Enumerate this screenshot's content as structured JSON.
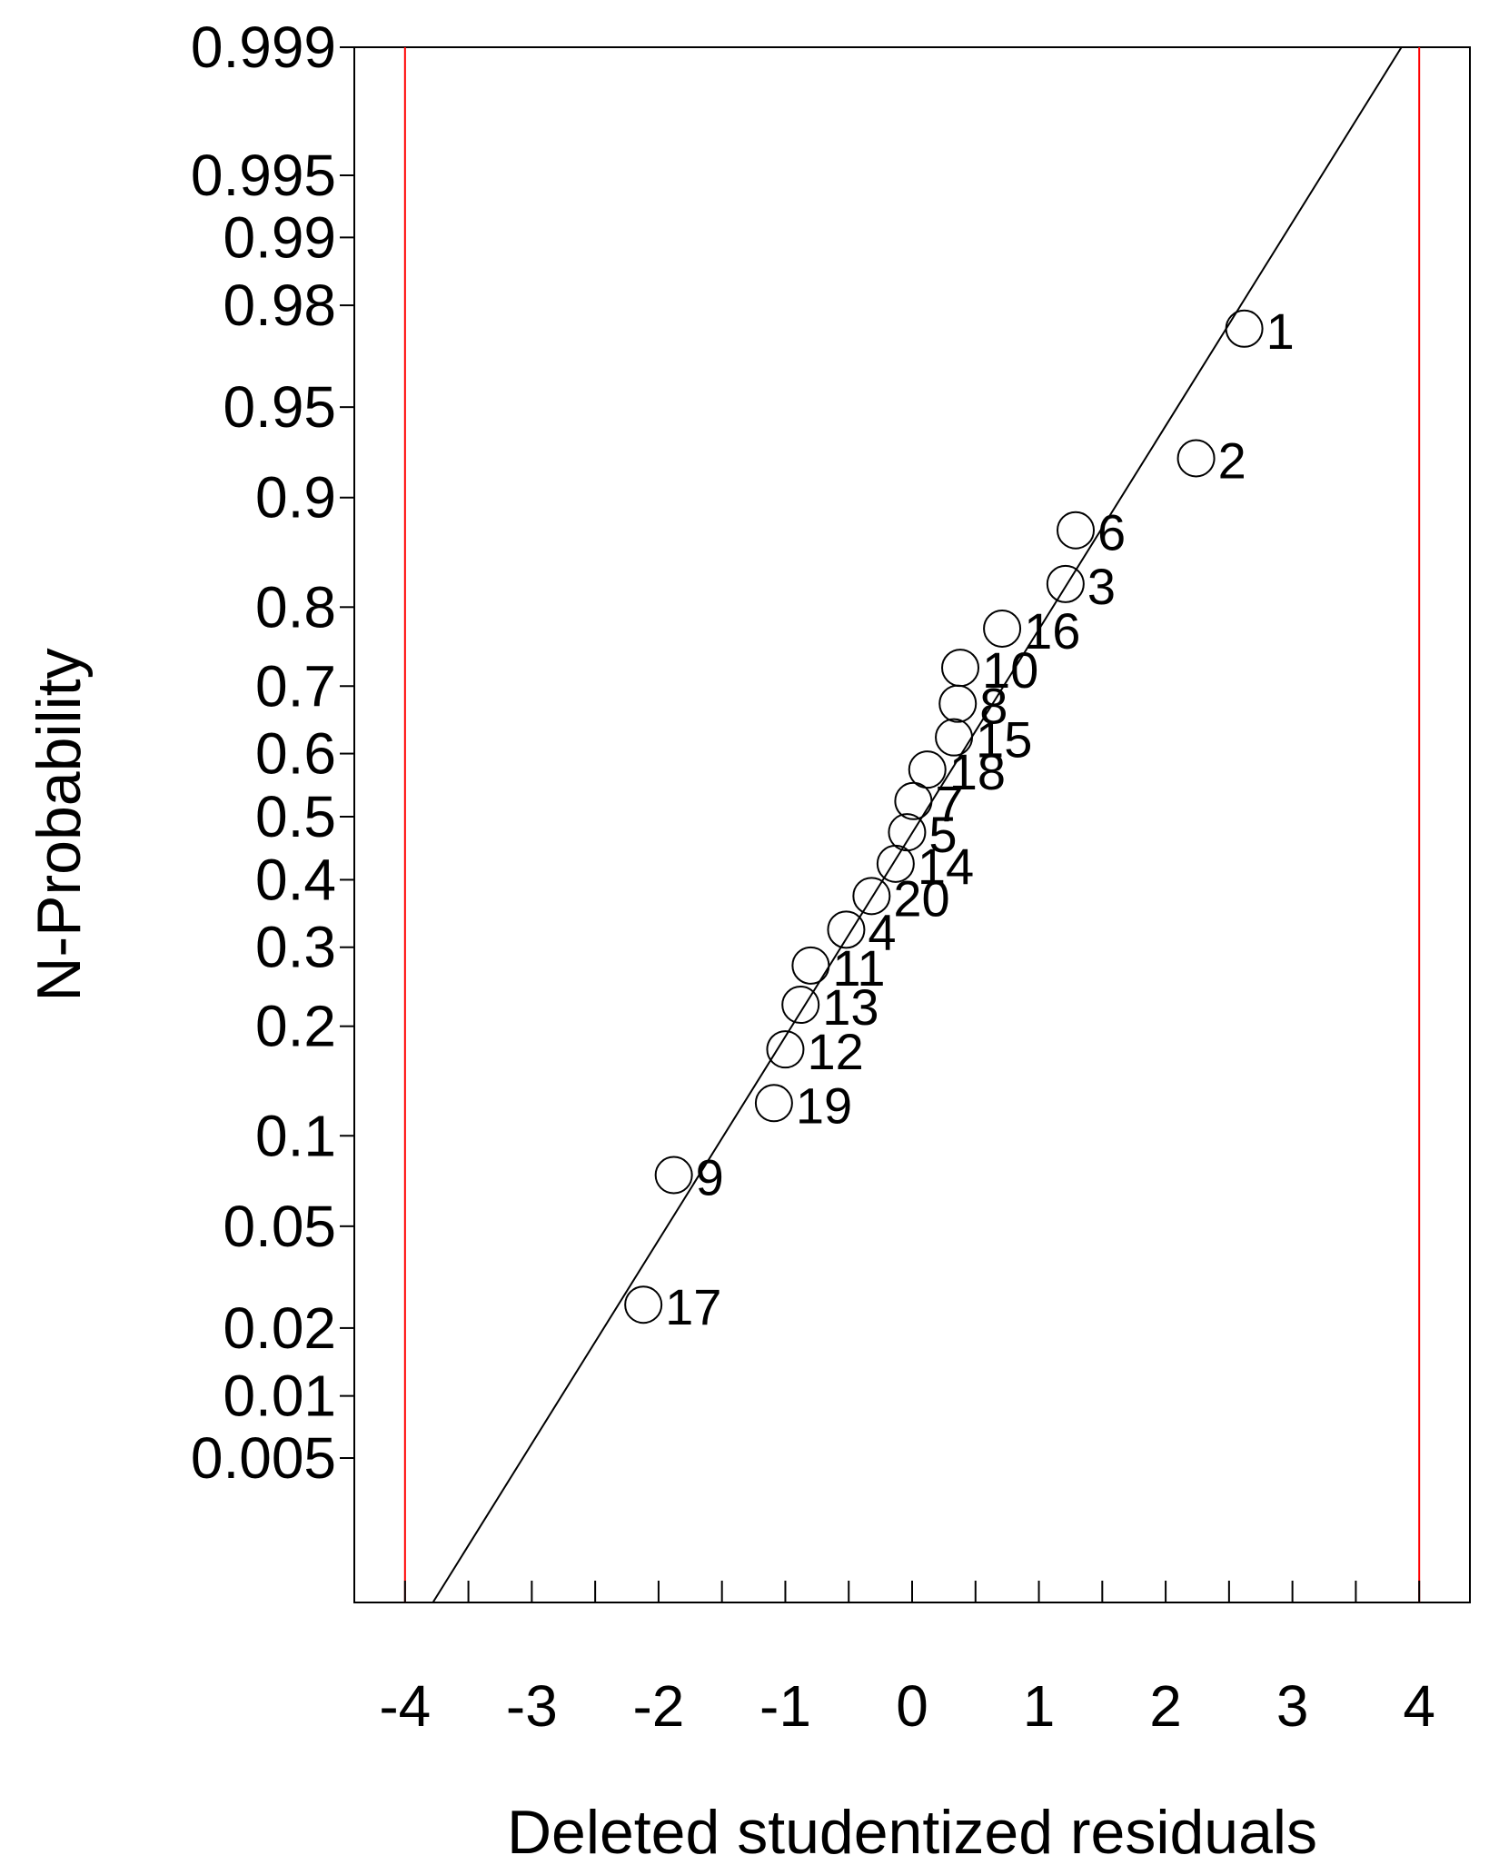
{
  "chart_data": {
    "type": "scatter",
    "title": "",
    "xlabel": "Deleted studentized residuals",
    "ylabel": "N-Probability",
    "xlim": [
      -4.4,
      4.4
    ],
    "ylim": [
      0.0008,
      0.999
    ],
    "yscale": "normal-probability",
    "grid": false,
    "x_ticks": [
      -4,
      -3,
      -2,
      -1,
      0,
      1,
      2,
      3,
      4
    ],
    "x_tick_labels": [
      "-4",
      "-3",
      "-2",
      "-1",
      "0",
      "1",
      "2",
      "3",
      "4"
    ],
    "x_minor_ticks": [
      -3.5,
      -2.5,
      -1.5,
      -0.5,
      0.5,
      1.5,
      2.5,
      3.5
    ],
    "y_ticks": [
      0.005,
      0.01,
      0.02,
      0.05,
      0.1,
      0.2,
      0.3,
      0.4,
      0.5,
      0.6,
      0.7,
      0.8,
      0.9,
      0.95,
      0.98,
      0.99,
      0.995,
      0.999
    ],
    "y_tick_labels": [
      "0.005",
      "0.01",
      "0.02",
      "0.05",
      "0.1",
      "0.2",
      "0.3",
      "0.4",
      "0.5",
      "0.6",
      "0.7",
      "0.8",
      "0.9",
      "0.95",
      "0.98",
      "0.99",
      "0.995",
      "0.999"
    ],
    "limit_lines": [
      -4,
      4
    ],
    "limit_line_color": "#ff0000",
    "fit_line": {
      "x": [
        -3.78,
        3.86
      ],
      "p": [
        0.0008,
        0.999
      ]
    },
    "points": [
      {
        "label": "1",
        "x": 2.62,
        "p": 0.975
      },
      {
        "label": "2",
        "x": 2.24,
        "p": 0.925
      },
      {
        "label": "6",
        "x": 1.29,
        "p": 0.875
      },
      {
        "label": "3",
        "x": 1.21,
        "p": 0.825
      },
      {
        "label": "16",
        "x": 0.71,
        "p": 0.775
      },
      {
        "label": "10",
        "x": 0.38,
        "p": 0.725
      },
      {
        "label": "8",
        "x": 0.36,
        "p": 0.675
      },
      {
        "label": "15",
        "x": 0.33,
        "p": 0.625
      },
      {
        "label": "18",
        "x": 0.12,
        "p": 0.575
      },
      {
        "label": "7",
        "x": 0.01,
        "p": 0.525
      },
      {
        "label": "5",
        "x": -0.04,
        "p": 0.475
      },
      {
        "label": "14",
        "x": -0.13,
        "p": 0.425
      },
      {
        "label": "20",
        "x": -0.32,
        "p": 0.375
      },
      {
        "label": "4",
        "x": -0.52,
        "p": 0.325
      },
      {
        "label": "11",
        "x": -0.8,
        "p": 0.275
      },
      {
        "label": "13",
        "x": -0.88,
        "p": 0.225
      },
      {
        "label": "12",
        "x": -1.0,
        "p": 0.175
      },
      {
        "label": "19",
        "x": -1.09,
        "p": 0.125
      },
      {
        "label": "9",
        "x": -1.88,
        "p": 0.075
      },
      {
        "label": "17",
        "x": -2.12,
        "p": 0.025
      }
    ]
  }
}
